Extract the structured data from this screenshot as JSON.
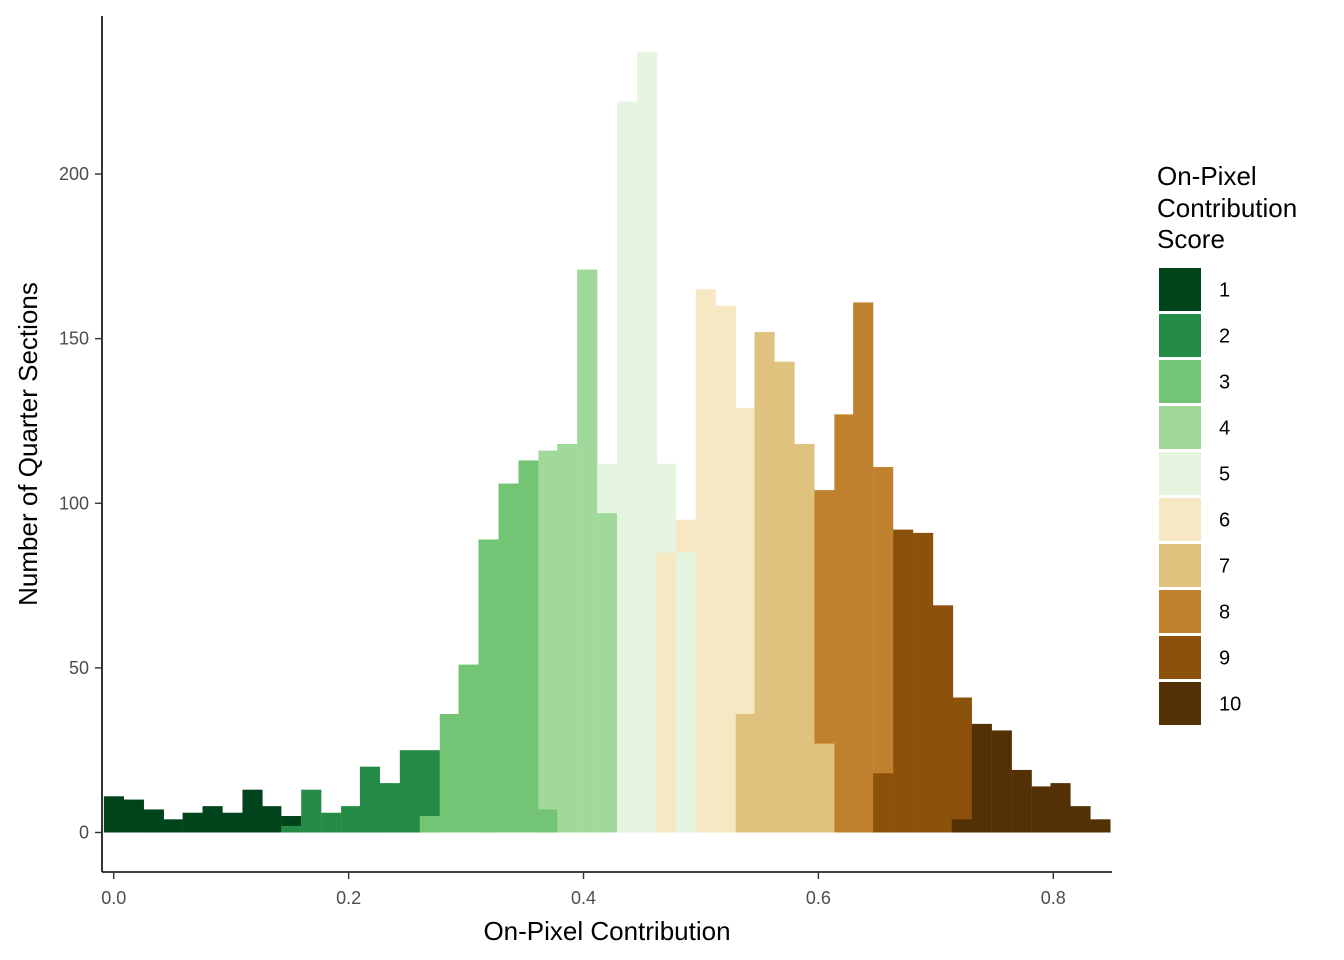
{
  "chart_data": {
    "type": "bar",
    "subtype": "stacked-histogram",
    "xlabel": "On-Pixel Contribution",
    "ylabel": "Number of Quarter Sections",
    "xlim": [
      -0.01,
      0.85
    ],
    "ylim": [
      -12,
      248
    ],
    "x_ticks": [
      0.0,
      0.2,
      0.4,
      0.6,
      0.8
    ],
    "x_tick_labels": [
      "0.0",
      "0.2",
      "0.4",
      "0.6",
      "0.8"
    ],
    "y_ticks": [
      0,
      50,
      100,
      150,
      200
    ],
    "y_tick_labels": [
      "0",
      "50",
      "100",
      "150",
      "200"
    ],
    "bin_width": 0.0168,
    "grid": false,
    "legend": {
      "title": [
        "On-Pixel",
        "Contribution",
        "Score"
      ],
      "position": "right",
      "entries": [
        {
          "label": "1",
          "color": "#00441b"
        },
        {
          "label": "2",
          "color": "#238b45"
        },
        {
          "label": "3",
          "color": "#74c476"
        },
        {
          "label": "4",
          "color": "#a1d99b"
        },
        {
          "label": "5",
          "color": "#e5f5e0"
        },
        {
          "label": "6",
          "color": "#f6e8c3"
        },
        {
          "label": "7",
          "color": "#dfc27d"
        },
        {
          "label": "8",
          "color": "#bf812d"
        },
        {
          "label": "9",
          "color": "#8c510a"
        },
        {
          "label": "10",
          "color": "#543005"
        }
      ]
    },
    "bins": [
      {
        "x": 0.0,
        "segments": [
          [
            1,
            11
          ]
        ]
      },
      {
        "x": 0.017,
        "segments": [
          [
            1,
            10
          ]
        ]
      },
      {
        "x": 0.034,
        "segments": [
          [
            1,
            7
          ]
        ]
      },
      {
        "x": 0.05,
        "segments": [
          [
            1,
            4
          ]
        ]
      },
      {
        "x": 0.067,
        "segments": [
          [
            1,
            6
          ]
        ]
      },
      {
        "x": 0.084,
        "segments": [
          [
            1,
            8
          ]
        ]
      },
      {
        "x": 0.101,
        "segments": [
          [
            1,
            6
          ]
        ]
      },
      {
        "x": 0.118,
        "segments": [
          [
            1,
            13
          ]
        ]
      },
      {
        "x": 0.134,
        "segments": [
          [
            1,
            8
          ]
        ]
      },
      {
        "x": 0.151,
        "segments": [
          [
            1,
            5
          ],
          [
            2,
            2
          ]
        ]
      },
      {
        "x": 0.168,
        "segments": [
          [
            2,
            13
          ]
        ]
      },
      {
        "x": 0.185,
        "segments": [
          [
            2,
            6
          ]
        ]
      },
      {
        "x": 0.202,
        "segments": [
          [
            2,
            8
          ]
        ]
      },
      {
        "x": 0.218,
        "segments": [
          [
            2,
            20
          ]
        ]
      },
      {
        "x": 0.235,
        "segments": [
          [
            2,
            15
          ]
        ]
      },
      {
        "x": 0.252,
        "segments": [
          [
            2,
            25
          ]
        ]
      },
      {
        "x": 0.269,
        "segments": [
          [
            2,
            25
          ],
          [
            3,
            5
          ]
        ]
      },
      {
        "x": 0.286,
        "segments": [
          [
            3,
            36
          ]
        ]
      },
      {
        "x": 0.302,
        "segments": [
          [
            3,
            51
          ]
        ]
      },
      {
        "x": 0.319,
        "segments": [
          [
            3,
            89
          ]
        ]
      },
      {
        "x": 0.336,
        "segments": [
          [
            3,
            106
          ]
        ]
      },
      {
        "x": 0.353,
        "segments": [
          [
            3,
            113
          ]
        ]
      },
      {
        "x": 0.37,
        "segments": [
          [
            4,
            116
          ],
          [
            3,
            7
          ]
        ]
      },
      {
        "x": 0.386,
        "segments": [
          [
            4,
            118
          ]
        ]
      },
      {
        "x": 0.403,
        "segments": [
          [
            4,
            171
          ]
        ]
      },
      {
        "x": 0.42,
        "segments": [
          [
            5,
            112
          ],
          [
            4,
            97
          ]
        ]
      },
      {
        "x": 0.437,
        "segments": [
          [
            5,
            222
          ]
        ]
      },
      {
        "x": 0.454,
        "segments": [
          [
            5,
            237
          ]
        ]
      },
      {
        "x": 0.47,
        "segments": [
          [
            6,
            85
          ],
          [
            5,
            112
          ]
        ]
      },
      {
        "x": 0.487,
        "segments": [
          [
            5,
            85
          ],
          [
            6,
            95
          ]
        ]
      },
      {
        "x": 0.504,
        "segments": [
          [
            6,
            165
          ]
        ]
      },
      {
        "x": 0.521,
        "segments": [
          [
            6,
            160
          ]
        ]
      },
      {
        "x": 0.538,
        "segments": [
          [
            7,
            36
          ],
          [
            6,
            129
          ]
        ]
      },
      {
        "x": 0.554,
        "segments": [
          [
            7,
            152
          ]
        ]
      },
      {
        "x": 0.571,
        "segments": [
          [
            7,
            143
          ]
        ]
      },
      {
        "x": 0.588,
        "segments": [
          [
            7,
            118
          ]
        ]
      },
      {
        "x": 0.605,
        "segments": [
          [
            8,
            104
          ],
          [
            7,
            27
          ]
        ]
      },
      {
        "x": 0.622,
        "segments": [
          [
            8,
            127
          ]
        ]
      },
      {
        "x": 0.638,
        "segments": [
          [
            8,
            161
          ]
        ]
      },
      {
        "x": 0.655,
        "segments": [
          [
            9,
            18
          ],
          [
            8,
            111
          ]
        ]
      },
      {
        "x": 0.672,
        "segments": [
          [
            9,
            92
          ]
        ]
      },
      {
        "x": 0.689,
        "segments": [
          [
            9,
            91
          ]
        ]
      },
      {
        "x": 0.706,
        "segments": [
          [
            9,
            69
          ]
        ]
      },
      {
        "x": 0.722,
        "segments": [
          [
            10,
            4
          ],
          [
            9,
            41
          ]
        ]
      },
      {
        "x": 0.739,
        "segments": [
          [
            10,
            33
          ]
        ]
      },
      {
        "x": 0.756,
        "segments": [
          [
            10,
            31
          ]
        ]
      },
      {
        "x": 0.773,
        "segments": [
          [
            10,
            19
          ]
        ]
      },
      {
        "x": 0.79,
        "segments": [
          [
            10,
            14
          ]
        ]
      },
      {
        "x": 0.806,
        "segments": [
          [
            10,
            15
          ]
        ]
      },
      {
        "x": 0.823,
        "segments": [
          [
            10,
            8
          ]
        ]
      },
      {
        "x": 0.84,
        "segments": [
          [
            10,
            4
          ]
        ]
      }
    ]
  }
}
